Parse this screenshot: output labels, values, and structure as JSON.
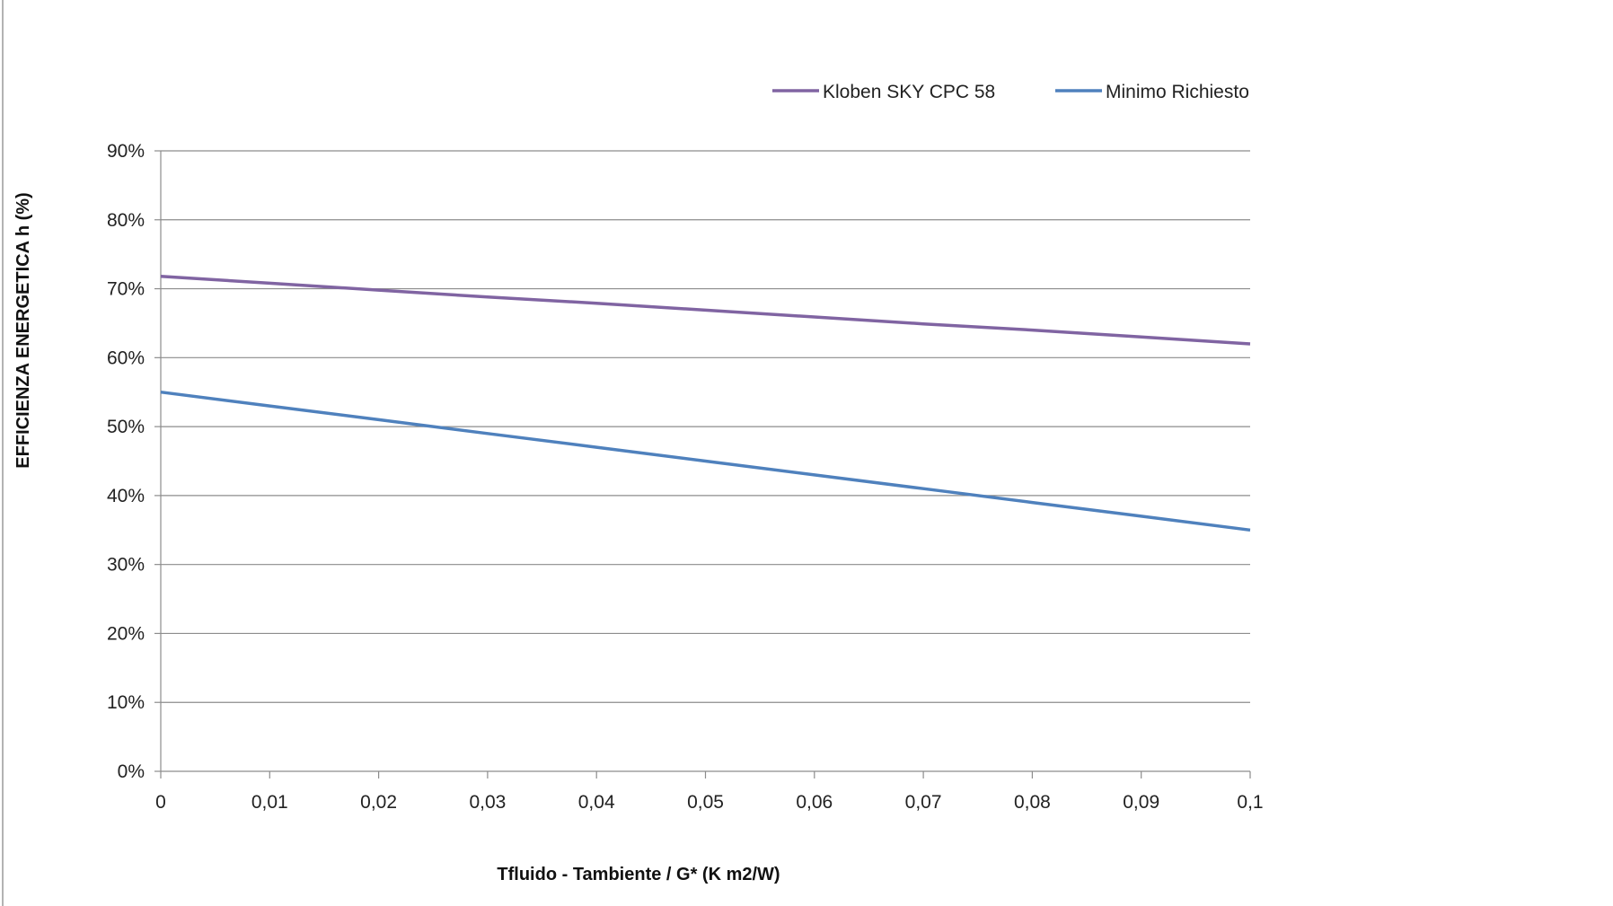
{
  "chart_data": {
    "type": "line",
    "title": "",
    "xlabel": "Tfluido - Tambiente / G* (K m2/W)",
    "ylabel": "EFFICIENZA ENERGETICA   h (%)",
    "x": [
      0,
      0.01,
      0.02,
      0.03,
      0.04,
      0.05,
      0.06,
      0.07,
      0.08,
      0.09,
      0.1
    ],
    "x_tick_labels": [
      "0",
      "0,01",
      "0,02",
      "0,03",
      "0,04",
      "0,05",
      "0,06",
      "0,07",
      "0,08",
      "0,09",
      "0,1"
    ],
    "y_ticks": [
      0,
      10,
      20,
      30,
      40,
      50,
      60,
      70,
      80,
      90
    ],
    "y_tick_labels": [
      "0%",
      "10%",
      "20%",
      "30%",
      "40%",
      "50%",
      "60%",
      "70%",
      "80%",
      "90%"
    ],
    "xlim": [
      0,
      0.1
    ],
    "ylim": [
      0,
      90
    ],
    "grid": "horizontal",
    "legend_position": "top-right",
    "series": [
      {
        "name": "Kloben SKY CPC 58",
        "color": "#8064A2",
        "values": [
          71.8,
          70.8,
          69.8,
          68.8,
          67.9,
          66.9,
          65.9,
          64.9,
          64.0,
          63.0,
          62.0
        ]
      },
      {
        "name": "Minimo Richiesto",
        "color": "#4F81BD",
        "values": [
          55,
          53,
          51,
          49,
          47,
          45,
          43,
          41,
          39,
          37,
          35
        ]
      }
    ]
  }
}
